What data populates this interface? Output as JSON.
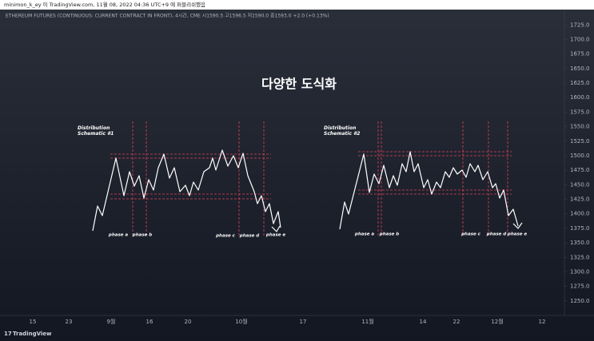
{
  "header": {
    "text": "minimon_k_ey 이 TradingView.com, 11월 08, 2022 04:36 UTC+9 에 퍼블리쉬했음"
  },
  "chart_data": {
    "type": "line",
    "legend": "ETHEREUM FUTURES (CONTINUOUS: CURRENT CONTRACT IN FRONT), 4시간, CME  시1590.5  고1596.5  저1590.0  종1593.0  +2.0 (+0.13%)",
    "title": "다양한 도식화",
    "ylim": [
      1225,
      1757
    ],
    "yticks": [
      {
        "value": 1250,
        "label": "1250.0"
      },
      {
        "value": 1275,
        "label": "1275.0"
      },
      {
        "value": 1300,
        "label": "1300.0"
      },
      {
        "value": 1325,
        "label": "1325.0"
      },
      {
        "value": 1350,
        "label": "1350.0"
      },
      {
        "value": 1375,
        "label": "1375.0"
      },
      {
        "value": 1400,
        "label": "1400.0"
      },
      {
        "value": 1425,
        "label": "1425.0"
      },
      {
        "value": 1450,
        "label": "1450.0"
      },
      {
        "value": 1475,
        "label": "1475.0"
      },
      {
        "value": 1500,
        "label": "1500.0"
      },
      {
        "value": 1525,
        "label": "1525.0"
      },
      {
        "value": 1550,
        "label": "1550.0"
      },
      {
        "value": 1575,
        "label": "1575.0"
      },
      {
        "value": 1600,
        "label": "1600.0"
      },
      {
        "value": 1625,
        "label": "1625.0"
      },
      {
        "value": 1650,
        "label": "1650.0"
      },
      {
        "value": 1675,
        "label": "1675.0"
      },
      {
        "value": 1700,
        "label": "1700.0"
      },
      {
        "value": 1725,
        "label": "1725.0"
      }
    ],
    "x_labels": [
      "15",
      "23",
      "9월",
      "16",
      "20",
      "10월",
      "17",
      "11월",
      "14",
      "22",
      "12월",
      "12"
    ],
    "schematics": [
      {
        "title": "Distribution Schematic #1",
        "phases": [
          "phase a",
          "phase b",
          "phase c",
          "phase d",
          "phase e"
        ]
      },
      {
        "title": "Distribution Schematic #2",
        "phases": [
          "phase a",
          "phase b",
          "phase c",
          "phase d",
          "phase e"
        ]
      }
    ]
  },
  "footer": {
    "brand": "TradingView"
  }
}
